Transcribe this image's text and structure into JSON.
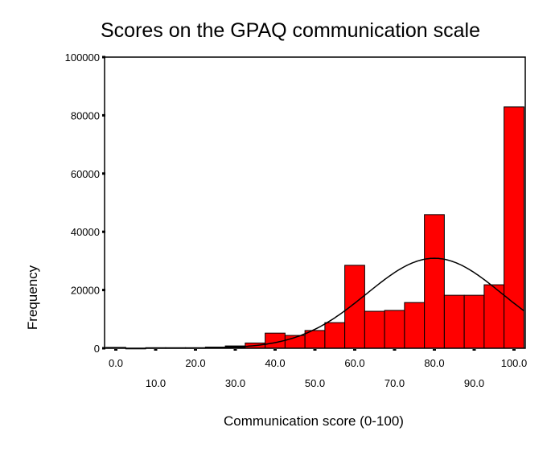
{
  "chart_data": {
    "type": "bar",
    "subtype": "histogram_with_normal_curve",
    "title": "Scores on the GPAQ communication scale",
    "xlabel": "Communication score (0-100)",
    "ylabel": "Frequency",
    "ylim": [
      0,
      100000
    ],
    "yticks": [
      0,
      20000,
      40000,
      60000,
      80000,
      100000
    ],
    "xticks": [
      "0.0",
      "10.0",
      "20.0",
      "30.0",
      "40.0",
      "50.0",
      "60.0",
      "70.0",
      "80.0",
      "90.0",
      "100.0"
    ],
    "bin_width": 5,
    "categories": [
      0,
      5,
      10,
      15,
      20,
      25,
      30,
      35,
      40,
      45,
      50,
      55,
      60,
      65,
      70,
      75,
      80,
      85,
      90,
      95,
      100
    ],
    "values": [
      300,
      0,
      200,
      200,
      200,
      400,
      800,
      1800,
      5200,
      4400,
      6100,
      8800,
      28500,
      12700,
      13000,
      15700,
      45900,
      18200,
      18200,
      21800,
      82900
    ],
    "normal_curve": {
      "peak_x": 80,
      "peak_y": 30900,
      "sd_approx": 17
    },
    "bar_color": "#ff0000",
    "grid": false,
    "legend": null
  }
}
